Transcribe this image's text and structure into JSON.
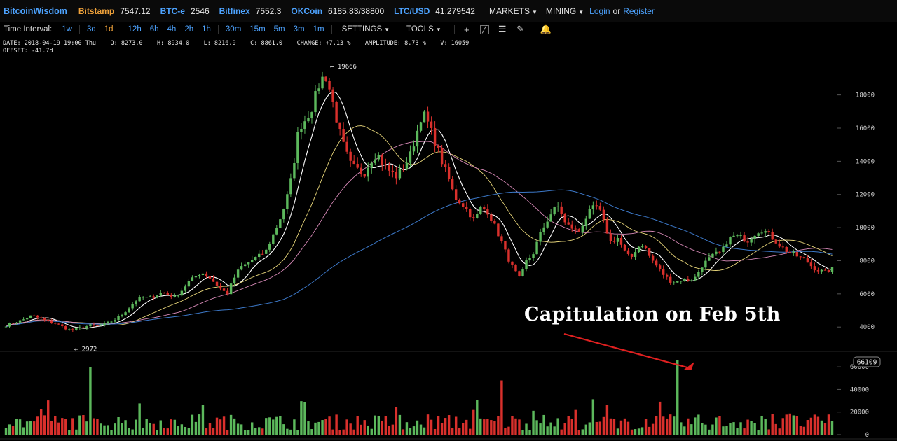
{
  "topbar": {
    "brand": "BitcoinWisdom",
    "markets": [
      {
        "exchange": "Bitstamp",
        "price": "7547.12",
        "color": "#f0a23a"
      },
      {
        "exchange": "BTC-e",
        "price": "2546",
        "color": "#4da3ff"
      },
      {
        "exchange": "Bitfinex",
        "price": "7552.3",
        "color": "#4da3ff"
      },
      {
        "exchange": "OKCoin",
        "price": "6185.83/38800",
        "color": "#4da3ff"
      },
      {
        "exchange": "LTC/USD",
        "price": "41.279542",
        "color": "#4da3ff"
      }
    ],
    "menu_markets": "MARKETS",
    "menu_mining": "MINING",
    "login": "Login",
    "or": "or",
    "register": "Register"
  },
  "toolbar": {
    "interval_label": "Time Interval:",
    "intervals": [
      "1w",
      "3d",
      "1d",
      "12h",
      "6h",
      "4h",
      "2h",
      "1h",
      "30m",
      "15m",
      "5m",
      "3m",
      "1m"
    ],
    "active_interval": "1d",
    "settings": "SETTINGS",
    "tools": "TOOLS",
    "icons": [
      "crosshair-icon",
      "line-tool-icon",
      "horizontal-lines-icon",
      "pen-icon",
      "alarm-bell-icon"
    ]
  },
  "info": {
    "line1": "DATE: 2018-04-19 19:00 Thu    O: 8273.0    H: 8934.0    L: 8216.9    C: 8861.0    CHANGE: +7.13 %    AMPLITUDE: 8.73 %    V: 16059",
    "line2": "OFFSET: -41.7d"
  },
  "annotation": "Capitulation on Feb 5th",
  "colors": {
    "up": "#5cb85c",
    "down": "#d9302c",
    "ma_white": "#ffffff",
    "ma_yellow": "#e8d67a",
    "ma_pink": "#d88ab8",
    "ma_blue": "#3c78c8",
    "arrow": "#e02020"
  },
  "chart_data": [
    {
      "type": "candlestick",
      "title": "",
      "price_axis": {
        "ticks": [
          4000,
          6000,
          8000,
          10000,
          12000,
          14000,
          16000,
          18000
        ],
        "ylim": [
          2700,
          19800
        ]
      },
      "high_marker": "← 19666",
      "low_marker": "← 2972",
      "closes": [
        4100,
        4250,
        4350,
        4500,
        4700,
        4550,
        4400,
        4300,
        4150,
        3950,
        3800,
        3900,
        4000,
        4100,
        4050,
        4150,
        4300,
        4500,
        4800,
        5200,
        5600,
        5800,
        5750,
        5900,
        6100,
        5900,
        5800,
        6200,
        6700,
        7000,
        7300,
        7100,
        6700,
        6300,
        6000,
        6900,
        7600,
        7800,
        8100,
        8300,
        8600,
        9500,
        10400,
        11500,
        13200,
        16000,
        16500,
        17200,
        18500,
        19300,
        18000,
        16200,
        14800,
        13800,
        13500,
        13200,
        14000,
        14500,
        13800,
        13400,
        13100,
        13600,
        14200,
        15500,
        17000,
        16200,
        15100,
        14000,
        13000,
        11800,
        11500,
        11000,
        10400,
        11200,
        11000,
        10200,
        9300,
        8300,
        7500,
        6900,
        8000,
        8400,
        9500,
        10300,
        11000,
        11300,
        10200,
        10000,
        9700,
        10500,
        11100,
        11300,
        10200,
        9100,
        9400,
        8600,
        8100,
        8800,
        9000,
        8200,
        7700,
        7200,
        6800,
        6700,
        6900,
        6800,
        7000,
        7700,
        8100,
        8400,
        8500,
        9300,
        9500,
        9400,
        9200,
        9600,
        9900,
        9700,
        9300,
        8900,
        8600,
        8400,
        8200,
        8000,
        7600,
        7400,
        7300,
        7500
      ],
      "moving_averages": [
        "white",
        "yellow",
        "pink",
        "blue"
      ],
      "volume": {
        "ticks": [
          0,
          20000,
          40000,
          60000
        ],
        "ylim": [
          0,
          70000
        ],
        "max_label": "66109",
        "peaks": [
          {
            "index": 103,
            "value": 66109
          },
          {
            "index": 13,
            "value": 60000
          },
          {
            "index": 76,
            "value": 48000
          }
        ]
      }
    }
  ]
}
